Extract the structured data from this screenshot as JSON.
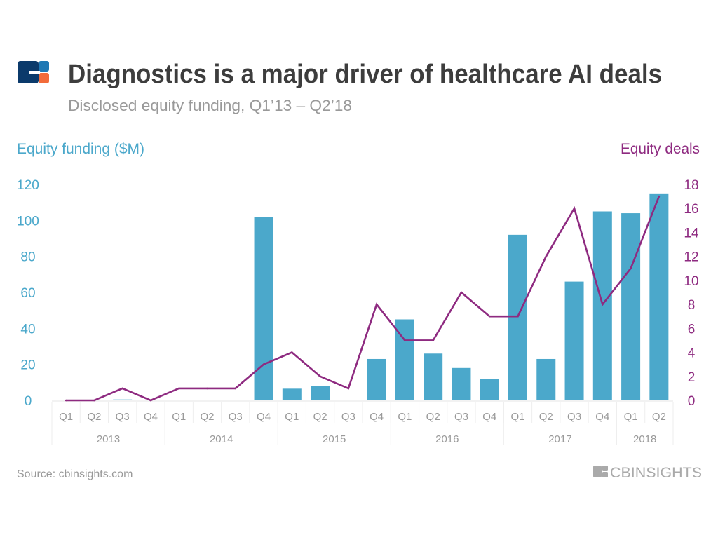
{
  "header": {
    "title": "Diagnostics is a major driver of healthcare AI deals",
    "subtitle": "Disclosed equity funding, Q1’13  – Q2’18"
  },
  "footer": {
    "source": "Source: cbinsights.com",
    "logo_text": "CBINSIGHTS"
  },
  "colors": {
    "bars": "#4BA8CB",
    "line": "#8E2A80",
    "title": "#3d3d3d",
    "muted": "#999999",
    "logo_dark": "#0b3a6b",
    "logo_blue": "#1f78b4",
    "logo_orange": "#f26b3a"
  },
  "chart_data": {
    "type": "bar+line",
    "categories": [
      "Q1",
      "Q2",
      "Q3",
      "Q4",
      "Q1",
      "Q2",
      "Q3",
      "Q4",
      "Q1",
      "Q2",
      "Q3",
      "Q4",
      "Q1",
      "Q2",
      "Q3",
      "Q4",
      "Q1",
      "Q2",
      "Q3",
      "Q4",
      "Q1",
      "Q2"
    ],
    "years": [
      {
        "label": "2013",
        "quarters": 4
      },
      {
        "label": "2014",
        "quarters": 4
      },
      {
        "label": "2015",
        "quarters": 4
      },
      {
        "label": "2016",
        "quarters": 4
      },
      {
        "label": "2017",
        "quarters": 4
      },
      {
        "label": "2018",
        "quarters": 2
      }
    ],
    "series": [
      {
        "name": "Equity funding ($M)",
        "type": "bar",
        "axis": "left",
        "values": [
          0,
          0,
          0.5,
          0,
          0.3,
          0.3,
          0,
          102,
          6.5,
          8,
          0.3,
          23,
          45,
          26,
          18,
          12,
          92,
          23,
          66,
          105,
          104,
          115
        ]
      },
      {
        "name": "Equity deals",
        "type": "line",
        "axis": "right",
        "values": [
          0,
          0,
          1,
          0,
          1,
          1,
          1,
          3,
          4,
          2,
          1,
          8,
          5,
          5,
          9,
          7,
          7,
          12,
          16,
          8,
          11,
          17
        ]
      }
    ],
    "ylabel_left": "Equity funding ($M)",
    "ylabel_right": "Equity deals",
    "ylim_left": [
      0,
      120
    ],
    "yticks_left": [
      0,
      20,
      40,
      60,
      80,
      100,
      120
    ],
    "ylim_right": [
      0,
      18
    ],
    "yticks_right": [
      0,
      2,
      4,
      6,
      8,
      10,
      12,
      14,
      16,
      18
    ],
    "grid": false
  }
}
